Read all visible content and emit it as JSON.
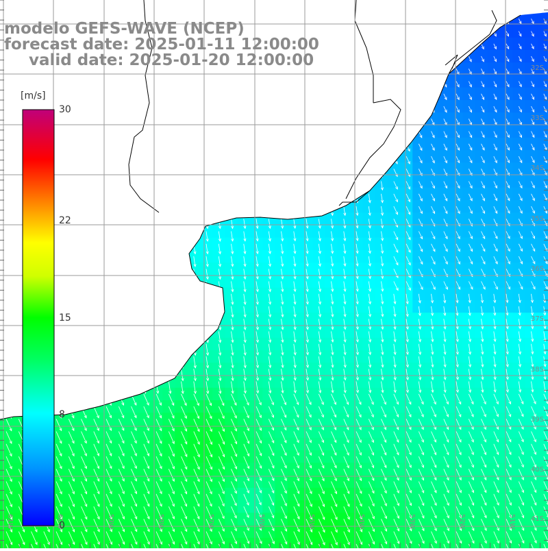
{
  "title": {
    "line1": "modelo GEFS-WAVE (NCEP)",
    "line2": "forecast date: 2025-01-11 12:00:00",
    "line3": "valid date: 2025-01-20 12:00:00"
  },
  "colorbar": {
    "unit": "[m/s]",
    "min": 0,
    "max": 30,
    "tick_labels": [
      "30",
      "22",
      "15",
      "8",
      "0"
    ],
    "tick_values": [
      30,
      22,
      15,
      8,
      0
    ],
    "colors": [
      "#0000ff",
      "#0096ff",
      "#00ffff",
      "#00ff00",
      "#ffff00",
      "#ff8000",
      "#ff0000",
      "#c0007a"
    ]
  },
  "map": {
    "lat_labels": [
      "32S",
      "33S",
      "34S",
      "35S",
      "36S",
      "37S",
      "38S",
      "39S",
      "40S",
      "41S"
    ],
    "lon_labels": [
      "61W",
      "60W",
      "59W",
      "58W",
      "57W",
      "56W",
      "55W",
      "54W",
      "53W",
      "52W",
      "51W"
    ],
    "land_color": "#ffffff",
    "grid_color": "#9a9a9a",
    "arrow_color": "#ffffff"
  }
}
